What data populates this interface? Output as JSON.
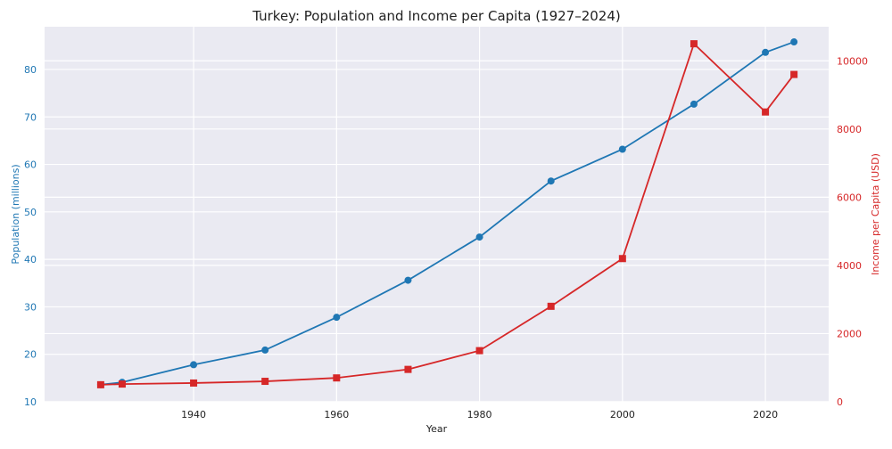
{
  "chart_data": {
    "type": "line",
    "title": "Turkey: Population and Income per Capita (1927–2024)",
    "xlabel": "Year",
    "x": [
      1927,
      1930,
      1940,
      1950,
      1960,
      1970,
      1980,
      1990,
      2000,
      2010,
      2020,
      2024
    ],
    "xlim": [
      1919.15,
      2028.85
    ],
    "xticks": [
      1940,
      1960,
      1980,
      2000,
      2020
    ],
    "grid": true,
    "legend": "none",
    "colors": {
      "background": "#eaeaf2",
      "grid": "#ffffff",
      "population": "#1f77b4",
      "income": "#d62728",
      "text": "#222222"
    },
    "left_axis": {
      "label": "Population (millions)",
      "ylim": [
        10,
        89
      ],
      "ticks": [
        10,
        20,
        30,
        40,
        50,
        60,
        70,
        80
      ]
    },
    "right_axis": {
      "label": "Income per Capita (USD)",
      "ylim": [
        0,
        11000
      ],
      "ticks": [
        0,
        2000,
        4000,
        6000,
        8000,
        10000
      ]
    },
    "series": [
      {
        "axis": "left",
        "color": "#1f77b4",
        "marker": "circle",
        "values": [
          13.6,
          14.1,
          17.8,
          20.9,
          27.8,
          35.6,
          44.7,
          56.5,
          63.2,
          72.7,
          83.6,
          85.8
        ]
      },
      {
        "axis": "right",
        "color": "#d62728",
        "marker": "square",
        "values": [
          500,
          520,
          550,
          600,
          700,
          950,
          1500,
          2800,
          4200,
          10500,
          8500,
          9600
        ]
      }
    ]
  }
}
